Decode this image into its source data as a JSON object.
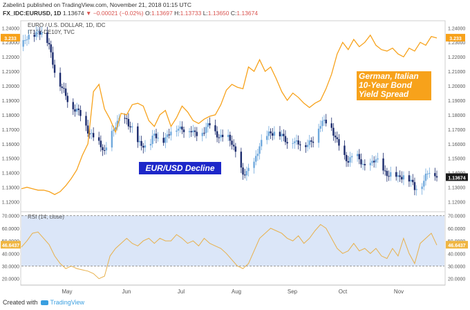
{
  "header": {
    "user": "Zabelin1",
    "published_text": "published on TradingView.com, November 21, 2018 01:15 UTC",
    "symbol": "FX_IDC:EURUSD, 1D",
    "last": "1.13674",
    "change": "−0.00021 (−0.02%)",
    "open_label": "O:",
    "open": "1.13697",
    "high_label": "H:",
    "high": "1.13733",
    "low_label": "L:",
    "low": "1.13650",
    "close_label": "C:",
    "close": "1.13674"
  },
  "main_legend": {
    "line1": "EURO / U.S. DOLLAR, 1D, IDC",
    "line2": "IT10Y-DE10Y, TVC"
  },
  "annotations": {
    "spread": "German, Italian 10-Year Bond Yield Spread",
    "decline": "EUR/USD Decline"
  },
  "labels": {
    "price_last": "1.13674",
    "spread_left": "3.233",
    "spread_right": "3.233",
    "rsi_left": "46.6437",
    "rsi_right": "46.6437"
  },
  "rsi_legend": "RSI (14, close)",
  "footer": {
    "created_with": "Created with",
    "brand": "TradingView"
  },
  "colors": {
    "up": "#6fa8dc",
    "down": "#1a2a6c",
    "spread": "#f7a21b",
    "rsi": "#e8b04b",
    "rsi_band": "#dbe6f8"
  },
  "chart_data": [
    {
      "type": "candlestick",
      "series": [
        {
          "name": "EURO / U.S. DOLLAR, 1D, IDC"
        }
      ],
      "x_tick_labels": [
        "May",
        "Jun",
        "Jul",
        "Aug",
        "Sep",
        "Oct",
        "Nov"
      ],
      "y_tick_labels": [
        "1.12000",
        "1.13000",
        "1.14000",
        "1.15000",
        "1.16000",
        "1.17000",
        "1.18000",
        "1.19000",
        "1.20000",
        "1.21000",
        "1.22000",
        "1.23000",
        "1.24000"
      ],
      "ylim": [
        1.115,
        1.243
      ],
      "x_range_days": [
        0,
        145
      ],
      "month_start_days": {
        "May": 17,
        "Jun": 48,
        "Jul": 78,
        "Aug": 109,
        "Sep": 140,
        "Oct": 170,
        "Nov": 201
      },
      "close_path_points": [
        [
          0,
          1.227
        ],
        [
          3,
          1.232
        ],
        [
          6,
          1.236
        ],
        [
          9,
          1.238
        ],
        [
          12,
          1.235
        ],
        [
          15,
          1.228
        ],
        [
          18,
          1.212
        ],
        [
          21,
          1.2
        ],
        [
          24,
          1.192
        ],
        [
          27,
          1.188
        ],
        [
          30,
          1.183
        ],
        [
          33,
          1.177
        ],
        [
          36,
          1.17
        ],
        [
          39,
          1.166
        ],
        [
          42,
          1.159
        ],
        [
          45,
          1.154
        ],
        [
          48,
          1.166
        ],
        [
          51,
          1.172
        ],
        [
          54,
          1.176
        ],
        [
          57,
          1.178
        ],
        [
          60,
          1.17
        ],
        [
          63,
          1.159
        ],
        [
          66,
          1.16
        ],
        [
          69,
          1.158
        ],
        [
          72,
          1.165
        ],
        [
          75,
          1.162
        ],
        [
          78,
          1.165
        ],
        [
          81,
          1.168
        ],
        [
          84,
          1.17
        ],
        [
          87,
          1.172
        ],
        [
          90,
          1.17
        ],
        [
          93,
          1.166
        ],
        [
          96,
          1.168
        ],
        [
          99,
          1.17
        ],
        [
          102,
          1.172
        ],
        [
          105,
          1.168
        ],
        [
          108,
          1.166
        ],
        [
          111,
          1.164
        ],
        [
          114,
          1.16
        ],
        [
          117,
          1.152
        ],
        [
          120,
          1.138
        ],
        [
          123,
          1.14
        ],
        [
          126,
          1.148
        ],
        [
          129,
          1.16
        ],
        [
          132,
          1.162
        ],
        [
          135,
          1.168
        ],
        [
          138,
          1.17
        ],
        [
          141,
          1.164
        ],
        [
          144,
          1.16
        ],
        [
          147,
          1.164
        ],
        [
          150,
          1.16
        ],
        [
          153,
          1.157
        ],
        [
          156,
          1.162
        ],
        [
          159,
          1.165
        ],
        [
          162,
          1.172
        ],
        [
          165,
          1.176
        ],
        [
          168,
          1.172
        ],
        [
          171,
          1.16
        ],
        [
          174,
          1.152
        ],
        [
          177,
          1.15
        ],
        [
          180,
          1.152
        ],
        [
          183,
          1.148
        ],
        [
          186,
          1.145
        ],
        [
          189,
          1.146
        ],
        [
          192,
          1.148
        ],
        [
          195,
          1.144
        ],
        [
          198,
          1.14
        ],
        [
          201,
          1.138
        ],
        [
          204,
          1.136
        ],
        [
          207,
          1.14
        ],
        [
          210,
          1.135
        ],
        [
          213,
          1.128
        ],
        [
          216,
          1.132
        ],
        [
          219,
          1.138
        ],
        [
          222,
          1.141
        ],
        [
          225,
          1.137
        ]
      ],
      "last": 1.13674
    },
    {
      "type": "line",
      "series": [
        {
          "name": "IT10Y-DE10Y, TVC",
          "points": [
            [
              0,
              1.129
            ],
            [
              3,
              1.13
            ],
            [
              6,
              1.129
            ],
            [
              9,
              1.128
            ],
            [
              12,
              1.128
            ],
            [
              15,
              1.127
            ],
            [
              18,
              1.125
            ],
            [
              21,
              1.127
            ],
            [
              24,
              1.131
            ],
            [
              27,
              1.136
            ],
            [
              30,
              1.142
            ],
            [
              33,
              1.152
            ],
            [
              36,
              1.16
            ],
            [
              39,
              1.196
            ],
            [
              42,
              1.201
            ],
            [
              45,
              1.184
            ],
            [
              48,
              1.177
            ],
            [
              51,
              1.168
            ],
            [
              54,
              1.181
            ],
            [
              57,
              1.18
            ],
            [
              60,
              1.187
            ],
            [
              63,
              1.188
            ],
            [
              66,
              1.186
            ],
            [
              69,
              1.176
            ],
            [
              72,
              1.172
            ],
            [
              75,
              1.18
            ],
            [
              78,
              1.183
            ],
            [
              81,
              1.172
            ],
            [
              84,
              1.178
            ],
            [
              87,
              1.186
            ],
            [
              90,
              1.182
            ],
            [
              93,
              1.176
            ],
            [
              96,
              1.174
            ],
            [
              99,
              1.177
            ],
            [
              102,
              1.179
            ],
            [
              105,
              1.18
            ],
            [
              108,
              1.187
            ],
            [
              111,
              1.197
            ],
            [
              114,
              1.201
            ],
            [
              117,
              1.199
            ],
            [
              120,
              1.198
            ],
            [
              123,
              1.213
            ],
            [
              126,
              1.21
            ],
            [
              129,
              1.218
            ],
            [
              132,
              1.21
            ],
            [
              135,
              1.213
            ],
            [
              138,
              1.205
            ],
            [
              141,
              1.196
            ],
            [
              144,
              1.19
            ],
            [
              147,
              1.195
            ],
            [
              150,
              1.192
            ],
            [
              153,
              1.188
            ],
            [
              156,
              1.185
            ],
            [
              159,
              1.188
            ],
            [
              162,
              1.19
            ],
            [
              165,
              1.198
            ],
            [
              168,
              1.208
            ],
            [
              171,
              1.222
            ],
            [
              174,
              1.23
            ],
            [
              177,
              1.225
            ],
            [
              180,
              1.232
            ],
            [
              183,
              1.227
            ],
            [
              186,
              1.23
            ],
            [
              189,
              1.235
            ],
            [
              192,
              1.228
            ],
            [
              195,
              1.225
            ],
            [
              198,
              1.224
            ],
            [
              201,
              1.226
            ],
            [
              204,
              1.222
            ],
            [
              207,
              1.22
            ],
            [
              210,
              1.226
            ],
            [
              213,
              1.224
            ],
            [
              216,
              1.23
            ],
            [
              219,
              1.228
            ],
            [
              222,
              1.234
            ],
            [
              225,
              1.233
            ]
          ]
        }
      ]
    },
    {
      "type": "line",
      "series": [
        {
          "name": "RSI (14, close)",
          "points": [
            [
              0,
              45
            ],
            [
              3,
              50
            ],
            [
              6,
              56
            ],
            [
              9,
              57
            ],
            [
              12,
              52
            ],
            [
              15,
              47
            ],
            [
              18,
              38
            ],
            [
              21,
              32
            ],
            [
              24,
              28
            ],
            [
              27,
              30
            ],
            [
              30,
              28
            ],
            [
              33,
              27
            ],
            [
              36,
              26
            ],
            [
              39,
              24
            ],
            [
              42,
              20
            ],
            [
              45,
              22
            ],
            [
              48,
              38
            ],
            [
              51,
              44
            ],
            [
              54,
              48
            ],
            [
              57,
              52
            ],
            [
              60,
              48
            ],
            [
              63,
              46
            ],
            [
              66,
              50
            ],
            [
              69,
              52
            ],
            [
              72,
              48
            ],
            [
              75,
              52
            ],
            [
              78,
              50
            ],
            [
              81,
              50
            ],
            [
              84,
              55
            ],
            [
              87,
              52
            ],
            [
              90,
              48
            ],
            [
              93,
              50
            ],
            [
              96,
              46
            ],
            [
              99,
              52
            ],
            [
              102,
              48
            ],
            [
              105,
              46
            ],
            [
              108,
              44
            ],
            [
              111,
              40
            ],
            [
              114,
              35
            ],
            [
              117,
              30
            ],
            [
              120,
              28
            ],
            [
              123,
              32
            ],
            [
              126,
              42
            ],
            [
              129,
              52
            ],
            [
              132,
              56
            ],
            [
              135,
              60
            ],
            [
              138,
              58
            ],
            [
              141,
              56
            ],
            [
              144,
              52
            ],
            [
              147,
              50
            ],
            [
              150,
              54
            ],
            [
              153,
              48
            ],
            [
              156,
              52
            ],
            [
              159,
              58
            ],
            [
              162,
              63
            ],
            [
              165,
              60
            ],
            [
              168,
              52
            ],
            [
              171,
              44
            ],
            [
              174,
              40
            ],
            [
              177,
              42
            ],
            [
              180,
              48
            ],
            [
              183,
              42
            ],
            [
              186,
              44
            ],
            [
              189,
              40
            ],
            [
              192,
              44
            ],
            [
              195,
              38
            ],
            [
              198,
              36
            ],
            [
              201,
              44
            ],
            [
              204,
              38
            ],
            [
              207,
              52
            ],
            [
              210,
              40
            ],
            [
              213,
              32
            ],
            [
              216,
              48
            ],
            [
              219,
              52
            ],
            [
              222,
              56
            ],
            [
              225,
              46.6437
            ]
          ]
        }
      ],
      "y_tick_labels": [
        "20.0000",
        "30.0000",
        "40.0000",
        "50.0000",
        "60.0000",
        "70.0000"
      ],
      "ylim": [
        16,
        72
      ],
      "bands": [
        30,
        70
      ],
      "last": 46.6437
    }
  ]
}
